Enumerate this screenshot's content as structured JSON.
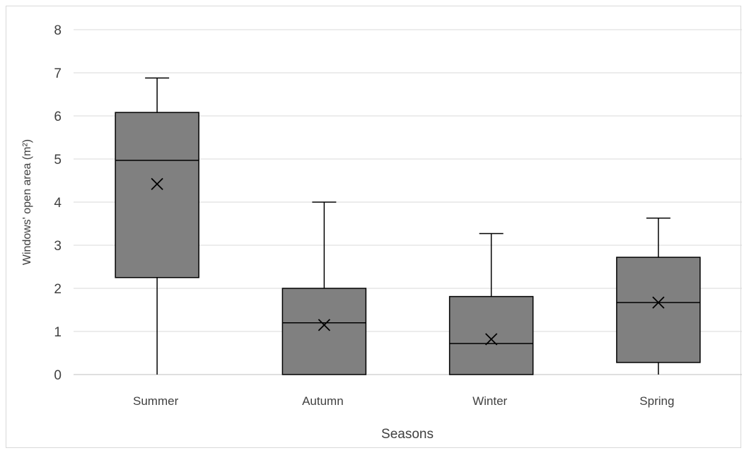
{
  "chart_data": {
    "type": "box",
    "title": "",
    "xlabel": "Seasons",
    "ylabel": "Windows' open area (m²)",
    "ylim": [
      0,
      8
    ],
    "yticks": [
      0,
      1,
      2,
      3,
      4,
      5,
      6,
      7,
      8
    ],
    "grid": true,
    "box_color": "#808080",
    "categories": [
      "Summer",
      "Autumn",
      "Winter",
      "Spring"
    ],
    "boxes": [
      {
        "category": "Summer",
        "min": 0,
        "q1": 2.25,
        "median": 4.97,
        "q3": 6.08,
        "max": 6.88,
        "mean": 4.42
      },
      {
        "category": "Autumn",
        "min": 0,
        "q1": 0,
        "median": 1.2,
        "q3": 2.0,
        "max": 4.0,
        "mean": 1.15
      },
      {
        "category": "Winter",
        "min": 0,
        "q1": 0,
        "median": 0.72,
        "q3": 1.81,
        "max": 3.27,
        "mean": 0.82
      },
      {
        "category": "Spring",
        "min": 0,
        "q1": 0.28,
        "median": 1.67,
        "q3": 2.72,
        "max": 3.63,
        "mean": 1.67
      }
    ]
  }
}
